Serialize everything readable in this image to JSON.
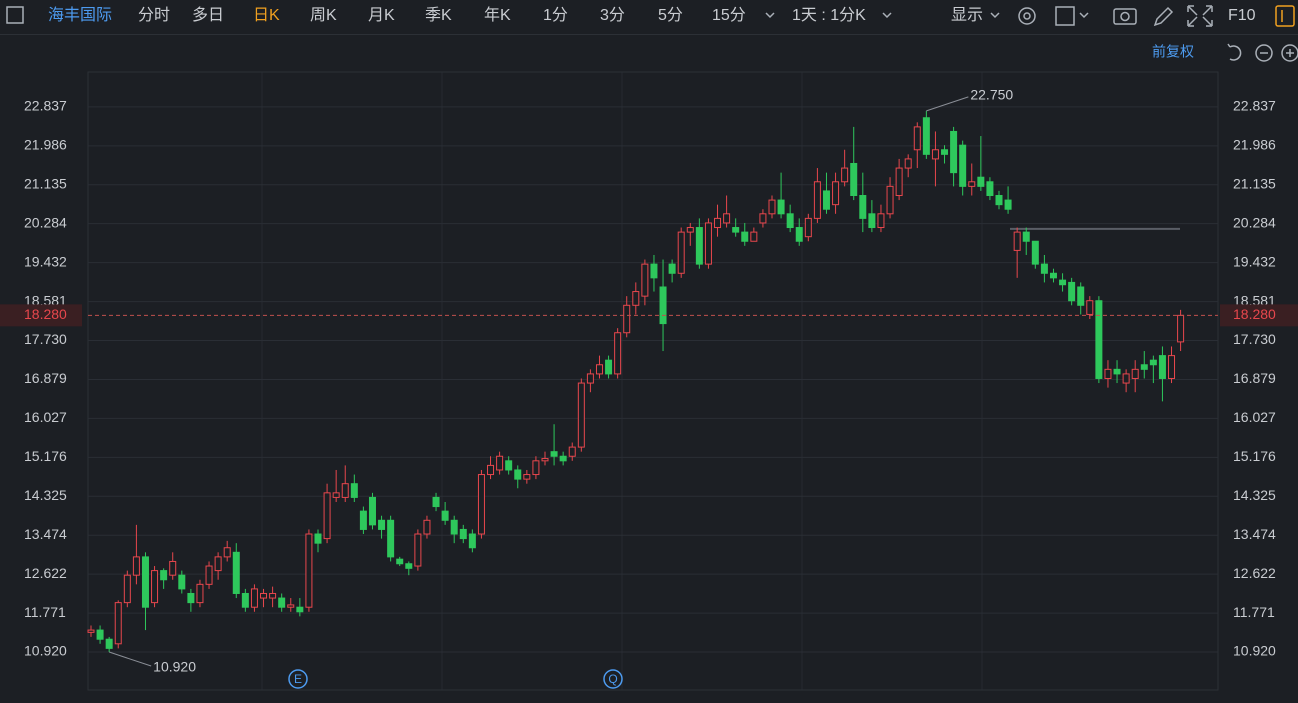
{
  "toolbar": {
    "name": "海丰国际",
    "tabs": [
      "分时",
      "多日",
      "日K",
      "周K",
      "月K",
      "季K",
      "年K",
      "1分",
      "3分",
      "5分",
      "15分"
    ],
    "interval": "1天 : 1分K",
    "display": "显示",
    "f10": "F10",
    "adjust": "前复权"
  },
  "chart_data": {
    "type": "candlestick",
    "open": [
      11.35,
      11.4,
      11.2,
      11.1,
      12.0,
      12.6,
      13.0,
      12.0,
      12.7,
      12.6,
      12.6,
      12.2,
      12.0,
      12.4,
      12.7,
      13.0,
      13.1,
      12.2,
      11.9,
      12.1,
      12.1,
      12.1,
      11.9,
      11.9,
      11.9,
      13.5,
      13.4,
      14.3,
      14.3,
      14.6,
      14.0,
      14.3,
      13.8,
      13.8,
      12.95,
      12.85,
      12.8,
      13.5,
      14.3,
      14.0,
      13.8,
      13.6,
      13.5,
      13.5,
      14.8,
      14.9,
      15.1,
      14.9,
      14.7,
      14.8,
      15.1,
      15.3,
      15.2,
      15.2,
      15.4,
      16.8,
      17.0,
      17.3,
      17.0,
      17.9,
      18.5,
      18.7,
      19.4,
      18.9,
      19.4,
      19.2,
      20.1,
      20.2,
      19.4,
      20.2,
      20.3,
      20.2,
      20.1,
      19.9,
      20.3,
      20.5,
      20.8,
      20.5,
      20.2,
      20.0,
      20.4,
      21.0,
      20.7,
      21.2,
      21.6,
      20.9,
      20.5,
      20.2,
      20.5,
      20.9,
      21.5,
      21.9,
      22.6,
      21.7,
      21.9,
      22.3,
      22.0,
      21.1,
      21.3,
      21.2,
      20.9,
      20.8,
      19.7,
      20.1,
      19.9,
      19.4,
      19.2,
      19.05,
      19.0,
      18.9,
      18.3,
      18.6,
      16.9,
      17.1,
      16.8,
      16.9,
      17.2,
      17.3,
      17.4,
      16.9,
      17.7
    ],
    "high": [
      11.5,
      11.5,
      11.25,
      12.05,
      12.7,
      13.7,
      13.1,
      12.8,
      12.75,
      13.1,
      12.7,
      12.3,
      12.5,
      12.9,
      13.1,
      13.35,
      13.3,
      12.3,
      12.4,
      12.3,
      12.35,
      12.2,
      12.1,
      12.1,
      13.6,
      13.6,
      14.6,
      14.9,
      15.0,
      14.8,
      14.1,
      14.4,
      13.9,
      13.9,
      13.0,
      12.9,
      13.6,
      13.9,
      14.4,
      14.2,
      13.9,
      13.7,
      13.6,
      14.9,
      15.2,
      15.3,
      15.2,
      15.0,
      14.9,
      15.2,
      15.3,
      15.9,
      15.3,
      15.5,
      16.9,
      17.1,
      17.4,
      17.4,
      18.0,
      18.7,
      19.0,
      19.5,
      19.6,
      19.5,
      19.5,
      20.2,
      20.3,
      20.4,
      20.4,
      20.7,
      20.9,
      20.4,
      20.3,
      20.2,
      20.6,
      20.9,
      21.4,
      20.7,
      20.4,
      20.5,
      21.5,
      21.4,
      21.4,
      21.9,
      22.4,
      21.4,
      20.8,
      20.7,
      21.3,
      21.7,
      21.8,
      22.5,
      22.75,
      22.3,
      22.0,
      22.4,
      22.1,
      21.6,
      22.2,
      21.3,
      21.0,
      21.1,
      20.2,
      20.2,
      19.9,
      19.6,
      19.3,
      19.2,
      19.1,
      19.0,
      18.7,
      18.7,
      17.3,
      17.3,
      17.1,
      17.3,
      17.5,
      17.4,
      17.6,
      17.6,
      18.4
    ],
    "low": [
      11.25,
      11.1,
      10.92,
      11.0,
      11.9,
      12.4,
      11.4,
      11.9,
      12.3,
      12.5,
      12.2,
      11.8,
      11.9,
      12.3,
      12.5,
      12.9,
      12.1,
      11.8,
      11.8,
      11.9,
      11.9,
      11.8,
      11.8,
      11.7,
      11.8,
      13.1,
      13.3,
      14.2,
      14.2,
      14.2,
      13.5,
      13.6,
      13.4,
      12.9,
      12.8,
      12.6,
      12.7,
      13.4,
      14.0,
      13.7,
      13.3,
      13.3,
      13.1,
      13.4,
      14.7,
      14.8,
      14.8,
      14.5,
      14.6,
      14.7,
      15.0,
      15.0,
      15.0,
      15.1,
      15.3,
      16.6,
      16.9,
      16.9,
      16.9,
      17.8,
      18.3,
      18.5,
      18.8,
      17.5,
      19.0,
      19.1,
      19.8,
      19.3,
      19.3,
      20.0,
      20.2,
      20.0,
      19.8,
      19.9,
      20.2,
      20.4,
      20.4,
      20.1,
      19.8,
      19.9,
      20.3,
      20.5,
      20.5,
      21.1,
      20.8,
      20.1,
      20.1,
      20.1,
      20.4,
      20.8,
      21.3,
      21.5,
      21.7,
      21.1,
      21.6,
      21.1,
      20.9,
      20.9,
      21.0,
      20.8,
      20.6,
      20.5,
      19.1,
      19.6,
      19.3,
      19.0,
      19.0,
      18.8,
      18.5,
      18.3,
      18.2,
      16.8,
      16.7,
      16.8,
      16.6,
      16.6,
      16.9,
      16.8,
      16.4,
      16.8,
      17.5
    ],
    "close": [
      11.4,
      11.2,
      11.0,
      12.0,
      12.6,
      13.0,
      11.9,
      12.7,
      12.5,
      12.9,
      12.3,
      12.0,
      12.4,
      12.8,
      13.0,
      13.2,
      12.2,
      11.9,
      12.3,
      12.2,
      12.2,
      11.9,
      11.95,
      11.8,
      13.5,
      13.3,
      14.4,
      14.4,
      14.6,
      14.3,
      13.6,
      13.7,
      13.6,
      13.0,
      12.85,
      12.75,
      13.5,
      13.8,
      14.1,
      13.8,
      13.5,
      13.4,
      13.2,
      14.8,
      15.0,
      15.2,
      14.9,
      14.7,
      14.8,
      15.1,
      15.15,
      15.2,
      15.1,
      15.4,
      16.8,
      17.0,
      17.2,
      17.0,
      17.9,
      18.5,
      18.8,
      19.4,
      19.1,
      18.1,
      19.2,
      20.1,
      20.2,
      19.4,
      20.3,
      20.4,
      20.5,
      20.1,
      19.9,
      20.1,
      20.5,
      20.8,
      20.5,
      20.2,
      19.9,
      20.4,
      21.2,
      20.6,
      21.2,
      21.5,
      20.9,
      20.4,
      20.2,
      20.5,
      21.1,
      21.5,
      21.7,
      22.4,
      21.8,
      21.9,
      21.8,
      21.4,
      21.1,
      21.2,
      21.1,
      20.9,
      20.7,
      20.6,
      20.1,
      19.9,
      19.4,
      19.2,
      19.1,
      18.95,
      18.6,
      18.5,
      18.6,
      16.9,
      17.1,
      17.0,
      17.0,
      17.1,
      17.1,
      17.2,
      16.9,
      17.4,
      18.28
    ],
    "up_color": "#e8474d",
    "down_color": "#2ec85c",
    "ylim": [
      10.09,
      23.6
    ],
    "yticks": [
      {
        "value": 10.92,
        "label": "10.920"
      },
      11.771,
      12.622,
      13.474,
      14.325,
      15.176,
      16.027,
      16.879,
      {
        "value": 17.73,
        "label": "17.730"
      },
      18.581,
      19.432,
      20.284,
      21.135,
      21.986,
      22.837
    ],
    "grid": true,
    "last_price": {
      "value": 18.28,
      "label": "18.280"
    },
    "max_label": {
      "value": 22.75,
      "label": "22.750"
    },
    "min_label": {
      "value": 10.92,
      "label": "10.920"
    },
    "level_line": 20.17,
    "event_markers": [
      "E",
      "Q"
    ]
  }
}
